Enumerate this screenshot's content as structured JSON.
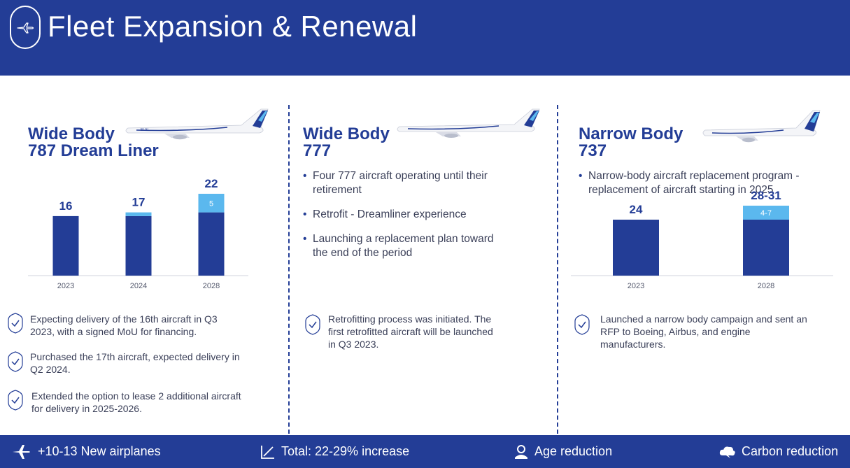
{
  "header": {
    "title": "Fleet Expansion & Renewal"
  },
  "columns": [
    {
      "title_line1": "Wide Body",
      "title_line2": "787 Dream Liner",
      "notes": [
        "Expecting delivery of the 16th aircraft in Q3 2023, with a signed MoU for financing.",
        "Purchased the 17th aircraft, expected delivery in Q2 2024.",
        "Extended the option to lease 2 additional aircraft for delivery in 2025-2026."
      ]
    },
    {
      "title_line1": "Wide Body",
      "title_line2": "777",
      "bullets": [
        "Four 777 aircraft operating until their retirement",
        "Retrofit - Dreamliner experience",
        "Launching a replacement plan toward the end of the period"
      ],
      "notes": [
        "Retrofitting process was initiated. The first retrofitted aircraft will be launched in Q3 2023."
      ]
    },
    {
      "title_line1": "Narrow Body",
      "title_line2": "737",
      "bullets": [
        "Narrow-body aircraft replacement program - replacement of aircraft starting in 2025"
      ],
      "notes": [
        "Launched a narrow body campaign and sent an RFP to Boeing, Airbus, and engine manufacturers."
      ]
    }
  ],
  "chart_data": [
    {
      "type": "bar",
      "categories": [
        "2023",
        "2024",
        "2028"
      ],
      "series": [
        {
          "values": [
            16,
            16,
            17
          ]
        },
        {
          "values": [
            0,
            1,
            5
          ],
          "segment_labels": [
            "",
            "1",
            "5"
          ]
        }
      ],
      "totals": [
        "16",
        "17",
        "22"
      ],
      "ylim": [
        0,
        22
      ],
      "colors": [
        "#233d96",
        "#5bb8ee"
      ]
    },
    {
      "type": "bar",
      "categories": [
        "2023",
        "2028"
      ],
      "series": [
        {
          "values": [
            24,
            24
          ]
        },
        {
          "values": [
            0,
            6
          ],
          "segment_labels": [
            "",
            "4-7"
          ]
        }
      ],
      "totals": [
        "24",
        "28-31"
      ],
      "ylim": [
        0,
        30
      ],
      "colors": [
        "#233d96",
        "#5bb8ee"
      ]
    }
  ],
  "footer": {
    "items": [
      {
        "icon": "airplane-icon",
        "label": "+10-13 New airplanes"
      },
      {
        "icon": "chart-trend-icon",
        "label": "Total: 22-29% increase"
      },
      {
        "icon": "user-age-icon",
        "label": "Age reduction"
      },
      {
        "icon": "cloud-icon",
        "label": "Carbon reduction"
      }
    ]
  },
  "colors": {
    "brand": "#233d96",
    "accent": "#5bb8ee",
    "text": "#3a3f58"
  }
}
